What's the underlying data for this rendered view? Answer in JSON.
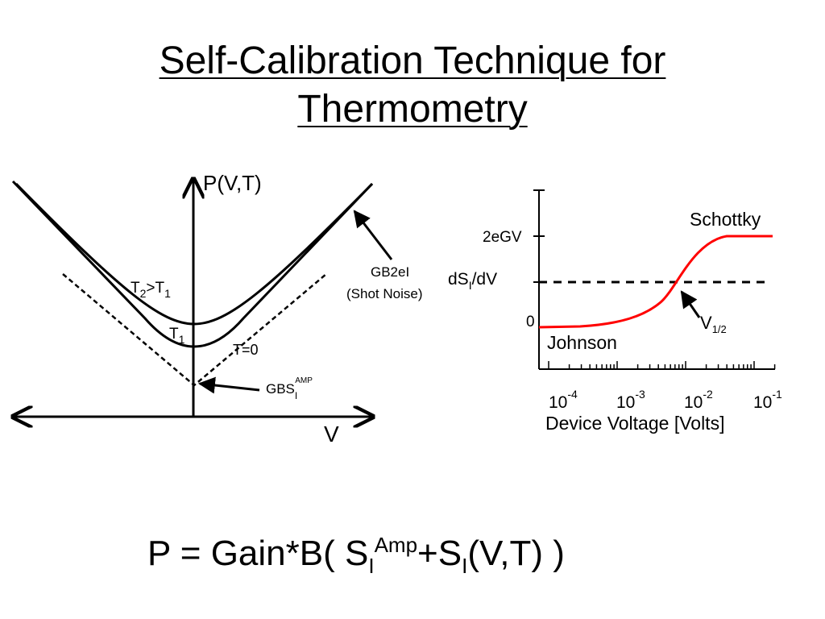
{
  "slide": {
    "title_line1": "Self-Calibration Technique for",
    "title_line2": "Thermometry"
  },
  "left_diagram": {
    "y_axis_label": "P(V,T)",
    "x_axis_label": "V",
    "curve_t2_label": {
      "base": "T",
      "sub1": "2",
      "rel": ">T",
      "sub2": "1"
    },
    "curve_t1_label": {
      "base": "T",
      "sub": "1"
    },
    "asymptote_label": "T=0",
    "shot_noise_label_line1": "GB2eI",
    "shot_noise_label_line2": "(Shot Noise)",
    "amp_label": {
      "base": "GBS",
      "sub": "I",
      "sup": "AMP"
    }
  },
  "right_chart": {
    "y_tick_top": "2eGV",
    "y_tick_zero": "0",
    "y_label": {
      "base": "dS",
      "sub": "I",
      "rest": "/dV"
    },
    "curve_label_high": "Schottky",
    "curve_label_low": "Johnson",
    "midpoint_label": {
      "base": "V",
      "sub": "1/2"
    },
    "x_axis_title": "Device Voltage [Volts]",
    "x_ticks": [
      {
        "base": "10",
        "exp": "-4"
      },
      {
        "base": "10",
        "exp": "-3"
      },
      {
        "base": "10",
        "exp": "-2"
      },
      {
        "base": "10",
        "exp": "-1"
      }
    ],
    "curve_color": "#ff0000"
  },
  "formula": {
    "lhs": "P = Gain*B( S",
    "sub1": "I",
    "sup1": "Amp",
    "mid": "+S",
    "sub2": "I",
    "rhs": "(V,T) )"
  }
}
